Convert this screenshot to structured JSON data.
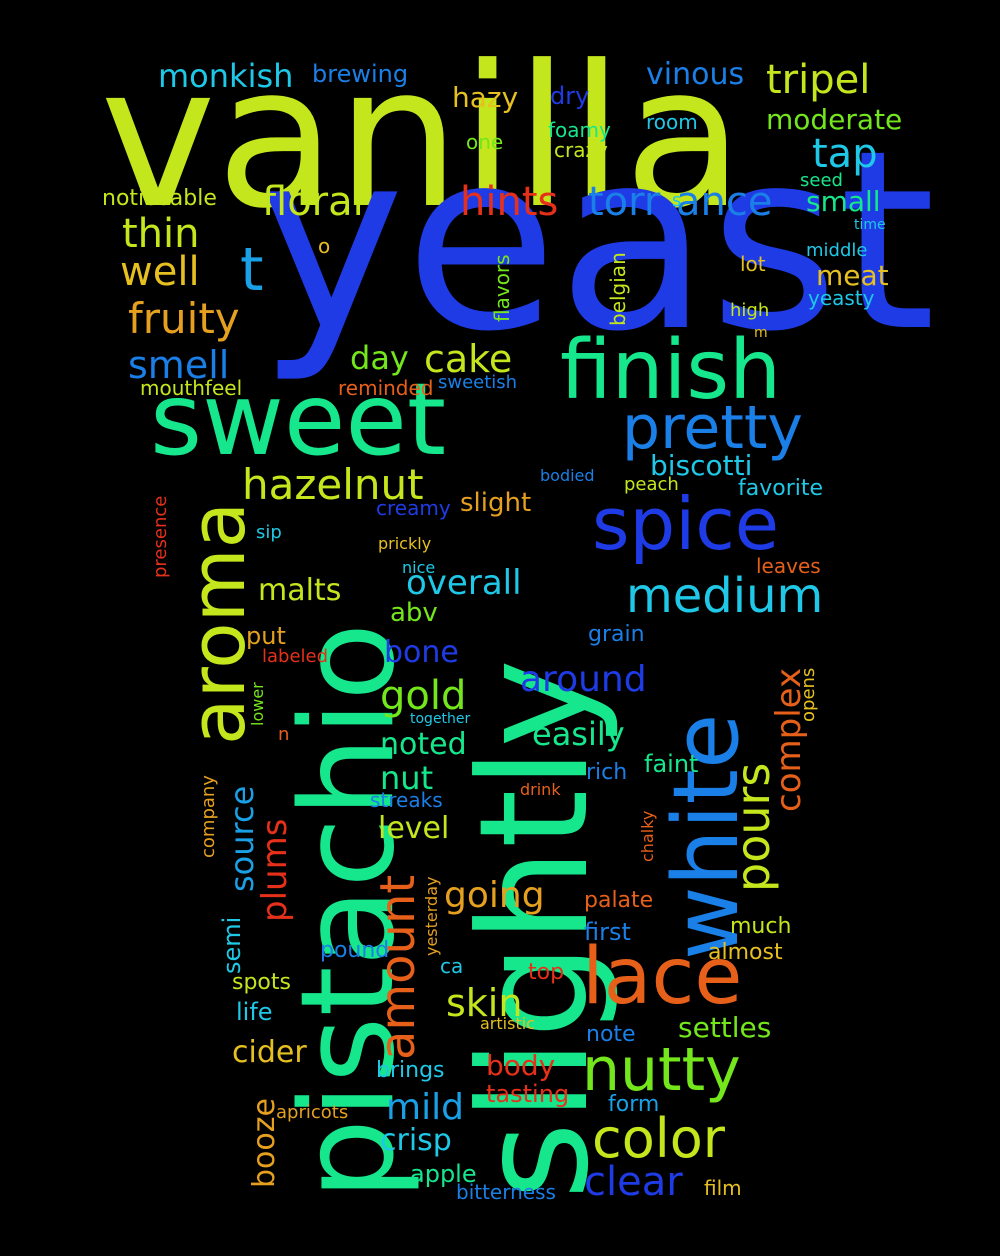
{
  "words": [
    {
      "text": "vanilla",
      "color": "#c4e61c"
    },
    {
      "text": "yeast",
      "color": "#1e3be6"
    },
    {
      "text": "slightly",
      "color": "#16e68c"
    },
    {
      "text": "pistachio",
      "color": "#16e68c"
    },
    {
      "text": "sweet",
      "color": "#16e68c"
    },
    {
      "text": "finish",
      "color": "#16e68c"
    },
    {
      "text": "white",
      "color": "#1a7fe6"
    },
    {
      "text": "aroma",
      "color": "#c4e61c"
    },
    {
      "text": "spice",
      "color": "#1e3be6"
    },
    {
      "text": "lace",
      "color": "#e6601a"
    },
    {
      "text": "pretty",
      "color": "#1a7fe6"
    },
    {
      "text": "nutty",
      "color": "#74e61c"
    },
    {
      "text": "color",
      "color": "#c4e61c"
    },
    {
      "text": "medium",
      "color": "#1ec8e6"
    },
    {
      "text": "amount",
      "color": "#e6601a"
    },
    {
      "text": "hazelnut",
      "color": "#c4e61c"
    },
    {
      "text": "fruity",
      "color": "#e6a020"
    },
    {
      "text": "floral",
      "color": "#c4e61c"
    },
    {
      "text": "hints",
      "color": "#e6301a"
    },
    {
      "text": "torr",
      "color": "#1a7fe6"
    },
    {
      "text": "ance",
      "color": "#1a7fe6"
    },
    {
      "text": "tripel",
      "color": "#c4e61c"
    },
    {
      "text": "tap",
      "color": "#1ec8e6"
    },
    {
      "text": "thin",
      "color": "#c4e61c"
    },
    {
      "text": "well",
      "color": "#e6c020"
    },
    {
      "text": "t",
      "color": "#1aa0e6"
    },
    {
      "text": "smell",
      "color": "#1a7fe6"
    },
    {
      "text": "cake",
      "color": "#c4e61c"
    },
    {
      "text": "day",
      "color": "#74e61c"
    },
    {
      "text": "monkish",
      "color": "#1ec8e6"
    },
    {
      "text": "brewing",
      "color": "#1a7fe6"
    },
    {
      "text": "hazy",
      "color": "#e6c020"
    },
    {
      "text": "dry",
      "color": "#1e3be6"
    },
    {
      "text": "vinous",
      "color": "#1a7fe6"
    },
    {
      "text": "moderate",
      "color": "#74e61c"
    },
    {
      "text": "foamy",
      "color": "#16e68c"
    },
    {
      "text": "crazy",
      "color": "#c4e61c"
    },
    {
      "text": "room",
      "color": "#1ec8e6"
    },
    {
      "text": "one",
      "color": "#74e61c"
    },
    {
      "text": "noticeable",
      "color": "#c4e61c"
    },
    {
      "text": "seed",
      "color": "#16e68c"
    },
    {
      "text": "small",
      "color": "#16e68c"
    },
    {
      "text": "time",
      "color": "#1ec8e6"
    },
    {
      "text": "middle",
      "color": "#1ec8e6"
    },
    {
      "text": "meat",
      "color": "#e6c020"
    },
    {
      "text": "yeasty",
      "color": "#1ec8e6"
    },
    {
      "text": "lot",
      "color": "#e6c020"
    },
    {
      "text": "high",
      "color": "#c4e61c"
    },
    {
      "text": "m",
      "color": "#e6c020"
    },
    {
      "text": "s",
      "color": "#1ec8e6"
    },
    {
      "text": "o",
      "color": "#e6c020"
    },
    {
      "text": "flavors",
      "color": "#74e61c"
    },
    {
      "text": "belgian",
      "color": "#c4e61c"
    },
    {
      "text": "mouthfeel",
      "color": "#c4e61c"
    },
    {
      "text": "reminded",
      "color": "#e6601a"
    },
    {
      "text": "sweetish",
      "color": "#1a7fe6"
    },
    {
      "text": "biscotti",
      "color": "#1ec8e6"
    },
    {
      "text": "favorite",
      "color": "#1ec8e6"
    },
    {
      "text": "bodied",
      "color": "#1a7fe6"
    },
    {
      "text": "peach",
      "color": "#c4e61c"
    },
    {
      "text": "slight",
      "color": "#e6a020"
    },
    {
      "text": "creamy",
      "color": "#1e3be6"
    },
    {
      "text": "presence",
      "color": "#e6301a"
    },
    {
      "text": "sip",
      "color": "#1ec8e6"
    },
    {
      "text": "prickly",
      "color": "#e6c020"
    },
    {
      "text": "nice",
      "color": "#1ec8e6"
    },
    {
      "text": "leaves",
      "color": "#e6601a"
    },
    {
      "text": "overall",
      "color": "#1ec8e6"
    },
    {
      "text": "malts",
      "color": "#c4e61c"
    },
    {
      "text": "abv",
      "color": "#74e61c"
    },
    {
      "text": "put",
      "color": "#e6a020"
    },
    {
      "text": "labeled",
      "color": "#e6301a"
    },
    {
      "text": "bone",
      "color": "#1e3be6"
    },
    {
      "text": "grain",
      "color": "#1a7fe6"
    },
    {
      "text": "around",
      "color": "#1e3be6"
    },
    {
      "text": "complex",
      "color": "#e6601a"
    },
    {
      "text": "opens",
      "color": "#e6c020"
    },
    {
      "text": "gold",
      "color": "#74e61c"
    },
    {
      "text": "lower",
      "color": "#74e61c"
    },
    {
      "text": "together",
      "color": "#1ec8e6"
    },
    {
      "text": "n",
      "color": "#e6601a"
    },
    {
      "text": "easily",
      "color": "#16e68c"
    },
    {
      "text": "pours",
      "color": "#c4e61c"
    },
    {
      "text": "noted",
      "color": "#16e68c"
    },
    {
      "text": "source",
      "color": "#1aa0e6"
    },
    {
      "text": "faint",
      "color": "#16e68c"
    },
    {
      "text": "nut",
      "color": "#16e68c"
    },
    {
      "text": "rich",
      "color": "#1a7fe6"
    },
    {
      "text": "company",
      "color": "#e6a020"
    },
    {
      "text": "streaks",
      "color": "#1a7fe6"
    },
    {
      "text": "drink",
      "color": "#e6601a"
    },
    {
      "text": "chalky",
      "color": "#e6601a"
    },
    {
      "text": "plums",
      "color": "#e6301a"
    },
    {
      "text": "level",
      "color": "#c4e61c"
    },
    {
      "text": "yesterday",
      "color": "#e6a020"
    },
    {
      "text": "going",
      "color": "#e6a020"
    },
    {
      "text": "palate",
      "color": "#e6601a"
    },
    {
      "text": "semi",
      "color": "#1ec8e6"
    },
    {
      "text": "first",
      "color": "#1a7fe6"
    },
    {
      "text": "much",
      "color": "#c4e61c"
    },
    {
      "text": "pound",
      "color": "#1a7fe6"
    },
    {
      "text": "ca",
      "color": "#1ec8e6"
    },
    {
      "text": "almost",
      "color": "#e6c020"
    },
    {
      "text": "spots",
      "color": "#c4e61c"
    },
    {
      "text": "top",
      "color": "#e6301a"
    },
    {
      "text": "skin",
      "color": "#c4e61c"
    },
    {
      "text": "life",
      "color": "#1ec8e6"
    },
    {
      "text": "settles",
      "color": "#74e61c"
    },
    {
      "text": "artistic",
      "color": "#e6c020"
    },
    {
      "text": "note",
      "color": "#1a7fe6"
    },
    {
      "text": "cider",
      "color": "#e6c020"
    },
    {
      "text": "body",
      "color": "#e6301a"
    },
    {
      "text": "brings",
      "color": "#1ec8e6"
    },
    {
      "text": "tasting",
      "color": "#e6301a"
    },
    {
      "text": "booze",
      "color": "#e6a020"
    },
    {
      "text": "mild",
      "color": "#1aa0e6"
    },
    {
      "text": "apricots",
      "color": "#e6a020"
    },
    {
      "text": "form",
      "color": "#1aa0e6"
    },
    {
      "text": "crisp",
      "color": "#1ec8e6"
    },
    {
      "text": "apple",
      "color": "#16e68c"
    },
    {
      "text": "clear",
      "color": "#1e3be6"
    },
    {
      "text": "bitterness",
      "color": "#1a7fe6"
    },
    {
      "text": "film",
      "color": "#e6c020"
    }
  ]
}
